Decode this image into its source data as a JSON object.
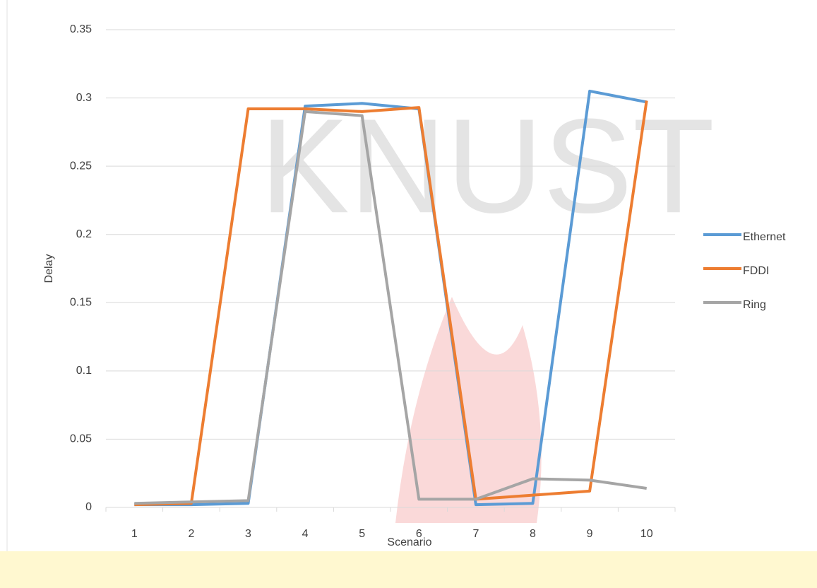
{
  "chart_data": {
    "type": "line",
    "watermark": "KNUST",
    "x_label": "Scenario",
    "y_label": "Delay",
    "categories": [
      "1",
      "2",
      "3",
      "4",
      "5",
      "6",
      "7",
      "8",
      "9",
      "10"
    ],
    "series": [
      {
        "name": "Ethernet",
        "color": "#5b9bd5",
        "values": [
          0.002,
          0.002,
          0.003,
          0.294,
          0.296,
          0.292,
          0.002,
          0.003,
          0.305,
          0.297
        ]
      },
      {
        "name": "FDDI",
        "color": "#ed7d31",
        "values": [
          0.002,
          0.003,
          0.292,
          0.292,
          0.29,
          0.293,
          0.006,
          0.009,
          0.012,
          0.298
        ]
      },
      {
        "name": "Ring",
        "color": "#a5a5a5",
        "values": [
          0.003,
          0.004,
          0.005,
          0.29,
          0.287,
          0.006,
          0.006,
          0.021,
          0.02,
          0.014
        ]
      }
    ],
    "ylim": [
      0,
      0.35
    ],
    "yticks": [
      0,
      0.05,
      0.1,
      0.15,
      0.2,
      0.25,
      0.3,
      0.35
    ],
    "grid": true,
    "legend": "right"
  }
}
